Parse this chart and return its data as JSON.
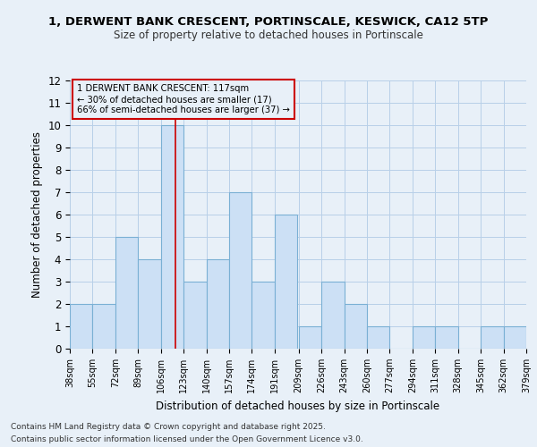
{
  "title1": "1, DERWENT BANK CRESCENT, PORTINSCALE, KESWICK, CA12 5TP",
  "title2": "Size of property relative to detached houses in Portinscale",
  "xlabel": "Distribution of detached houses by size in Portinscale",
  "ylabel": "Number of detached properties",
  "bins": [
    38,
    55,
    72,
    89,
    106,
    123,
    140,
    157,
    174,
    191,
    209,
    226,
    243,
    260,
    277,
    294,
    311,
    328,
    345,
    362,
    379
  ],
  "counts": [
    2,
    2,
    5,
    4,
    10,
    3,
    4,
    7,
    3,
    6,
    1,
    3,
    2,
    1,
    0,
    1,
    1,
    0,
    1,
    1
  ],
  "bar_facecolor": "#cce0f5",
  "bar_edgecolor": "#7ab0d4",
  "grid_color": "#b8d0e8",
  "bg_color": "#e8f0f8",
  "vline_x": 117,
  "vline_color": "#cc0000",
  "annotation_title": "1 DERWENT BANK CRESCENT: 117sqm",
  "annotation_line1": "← 30% of detached houses are smaller (17)",
  "annotation_line2": "66% of semi-detached houses are larger (37) →",
  "annotation_box_edgecolor": "#cc0000",
  "ylim": [
    0,
    12
  ],
  "yticks": [
    0,
    1,
    2,
    3,
    4,
    5,
    6,
    7,
    8,
    9,
    10,
    11,
    12
  ],
  "tick_labels": [
    "38sqm",
    "55sqm",
    "72sqm",
    "89sqm",
    "106sqm",
    "123sqm",
    "140sqm",
    "157sqm",
    "174sqm",
    "191sqm",
    "209sqm",
    "226sqm",
    "243sqm",
    "260sqm",
    "277sqm",
    "294sqm",
    "311sqm",
    "328sqm",
    "345sqm",
    "362sqm",
    "379sqm"
  ],
  "footnote1": "Contains HM Land Registry data © Crown copyright and database right 2025.",
  "footnote2": "Contains public sector information licensed under the Open Government Licence v3.0."
}
